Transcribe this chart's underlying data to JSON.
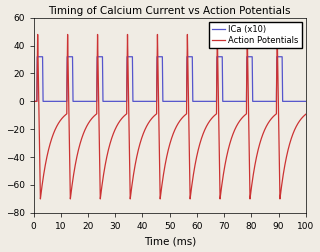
{
  "title": "Timing of Calcium Current vs Action Potentials",
  "xlabel": "Time (ms)",
  "ylabel": "",
  "xlim": [
    0,
    100
  ],
  "ylim": [
    -80,
    60
  ],
  "xticks": [
    0,
    10,
    20,
    30,
    40,
    50,
    60,
    70,
    80,
    90,
    100
  ],
  "yticks": [
    -80,
    -60,
    -40,
    -20,
    0,
    20,
    40,
    60
  ],
  "legend_labels": [
    "ICa (x10)",
    "Action Potentials"
  ],
  "ica_color": "#5555cc",
  "ap_color": "#cc3333",
  "bg_color": "#f0ece4",
  "plot_bg": "#f0ece4",
  "figsize": [
    3.2,
    2.52
  ],
  "dpi": 100,
  "spike_period": 11.0,
  "num_spikes": 9,
  "first_spike": 1.2,
  "ica_peak": 32,
  "ica_duration": 2.2,
  "ap_peak": 48,
  "ap_trough": -70,
  "ap_rise_dur": 0.3,
  "ap_fall_dur": 1.0,
  "ap_recover_tau": 4.0,
  "ap_rest": -3
}
